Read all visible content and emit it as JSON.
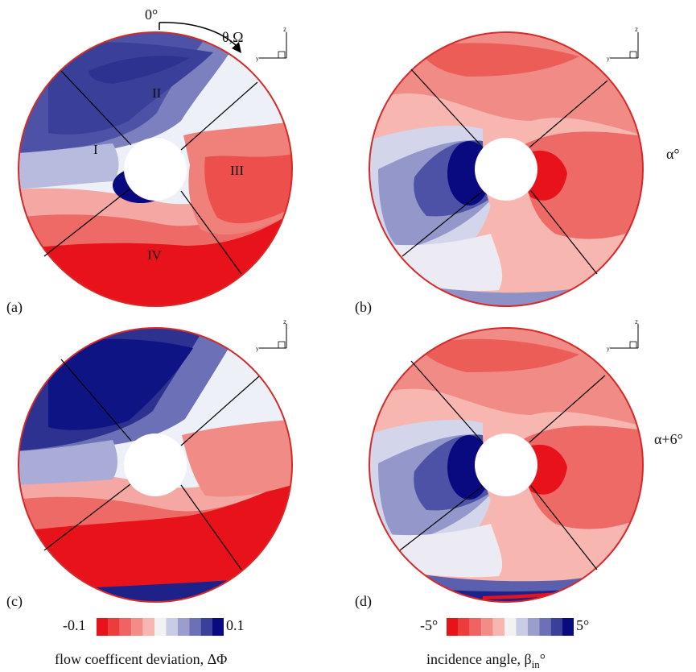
{
  "panels": [
    {
      "id": "a",
      "letter": "(a)",
      "variable": "flow coefficient deviation",
      "regions": [
        "I",
        "II",
        "III",
        "IV"
      ]
    },
    {
      "id": "b",
      "letter": "(b)",
      "variable": "incidence angle"
    },
    {
      "id": "c",
      "letter": "(c)",
      "variable": "flow coefficient deviation"
    },
    {
      "id": "d",
      "letter": "(d)",
      "variable": "incidence angle"
    }
  ],
  "row_labels": [
    "α°",
    "α+6°"
  ],
  "rotation": {
    "zero": "0°",
    "direction": "θ,Ω"
  },
  "axes_triad": {
    "z": "z",
    "y": "y"
  },
  "colorbars": [
    {
      "min": "-0.1",
      "max": "0.1",
      "title": "flow coefficent deviation, ΔΦ",
      "low_color": "#e8121b",
      "high_color": "#0a0a80"
    },
    {
      "min": "-5°",
      "max": "5°",
      "title_main": "incidence angle, β",
      "title_sub": "in",
      "title_suffix": "°",
      "low_color": "#e8121b",
      "high_color": "#0a0a80"
    }
  ],
  "colors": {
    "red": "#e8121b",
    "blue": "#0a0a80",
    "neutral": "#f2f2f2"
  }
}
